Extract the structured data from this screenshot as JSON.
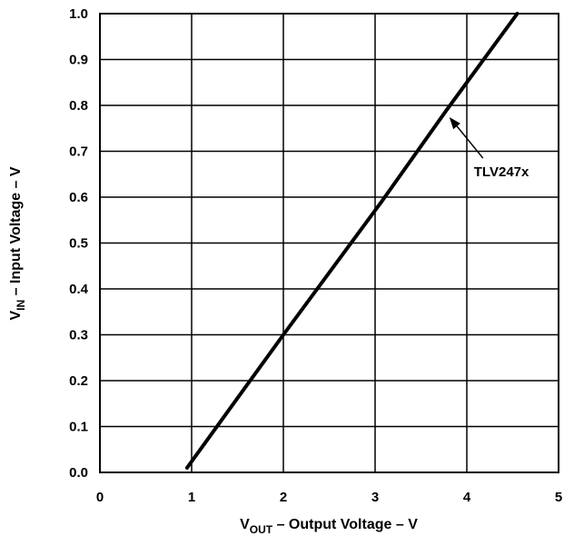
{
  "chart_data": {
    "type": "line",
    "title": "",
    "xlabel": {
      "main": "V",
      "sub": "OUT",
      "rest": " – Output Voltage – V"
    },
    "ylabel": {
      "main": "V",
      "sub": "IN",
      "rest": " – Input Voltage – V"
    },
    "xlim": [
      0,
      5
    ],
    "ylim": [
      0,
      1.0
    ],
    "xticks": [
      "0",
      "1",
      "2",
      "3",
      "4",
      "5"
    ],
    "yticks": [
      "0.0",
      "0.1",
      "0.2",
      "0.3",
      "0.4",
      "0.5",
      "0.6",
      "0.7",
      "0.8",
      "0.9",
      "1.0"
    ],
    "grid": true,
    "series": [
      {
        "name": "TLV247x",
        "x": [
          0.95,
          2.0,
          3.07,
          3.78,
          4.55
        ],
        "y": [
          0.01,
          0.3,
          0.59,
          0.79,
          1.0
        ]
      }
    ],
    "annotations": [
      {
        "text": "TLV247x",
        "series": "TLV247x",
        "x": 3.78,
        "y": 0.79
      }
    ]
  }
}
